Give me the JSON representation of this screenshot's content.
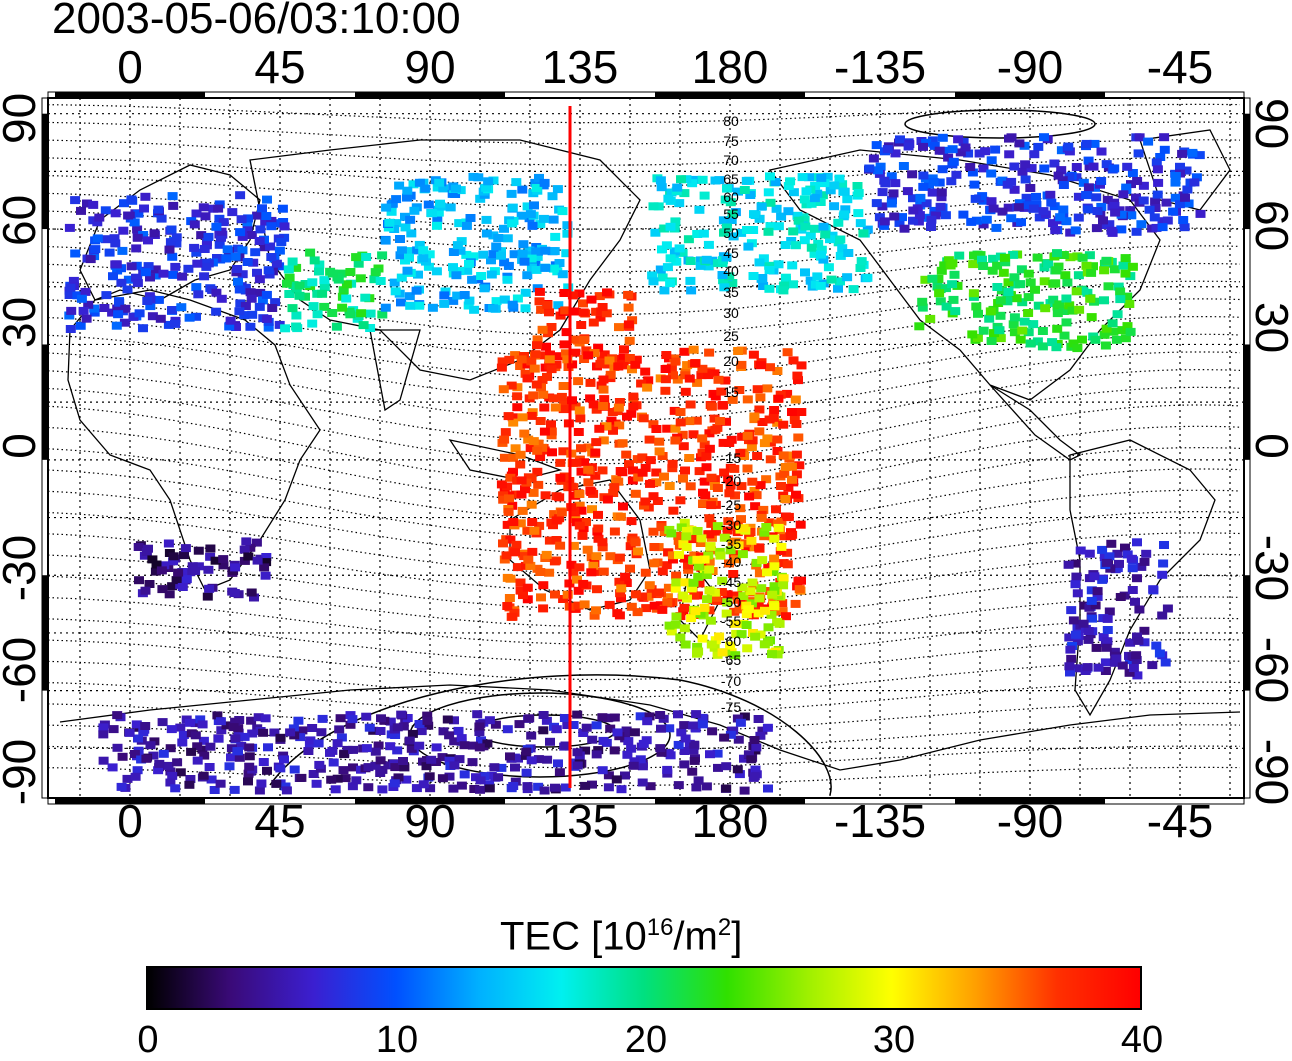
{
  "title": "2003-05-06/03:10:00",
  "x_ticks": [
    "0",
    "45",
    "90",
    "135",
    "180",
    "-135",
    "-90",
    "-45"
  ],
  "y_ticks": [
    "90",
    "60",
    "30",
    "0",
    "-30",
    "-60",
    "-90"
  ],
  "colorbar": {
    "label_prefix": "TEC  [10",
    "label_exp1": "16",
    "label_mid": "/m",
    "label_exp2": "2",
    "label_suffix": "]",
    "ticks": [
      "0",
      "10",
      "20",
      "30",
      "40"
    ],
    "colors": [
      "#000000",
      "#3a0a78",
      "#3b1fd0",
      "#0050ff",
      "#00b0ff",
      "#00f0f0",
      "#00e080",
      "#30e000",
      "#a0f000",
      "#ffff00",
      "#ffa000",
      "#ff3000",
      "#ff0000"
    ]
  },
  "contour_labels_north": [
    "80",
    "75",
    "70",
    "65",
    "60",
    "55",
    "50",
    "45",
    "40",
    "35",
    "30",
    "25",
    "20",
    "15"
  ],
  "contour_labels_south": [
    "-15",
    "-20",
    "-25",
    "-30",
    "-35",
    "-40",
    "-45",
    "-50",
    "-55",
    "-60",
    "-65",
    "-70",
    "-75"
  ],
  "chart_data": {
    "type": "heatmap",
    "title": "2003-05-06/03:10:00",
    "xlabel": "",
    "ylabel": "",
    "xlim": [
      -25,
      335
    ],
    "ylim": [
      -90,
      90
    ],
    "colorbar_label": "TEC [10^16/m^2]",
    "colorbar_range": [
      0,
      40
    ],
    "marker_longitude": 135,
    "regions": [
      {
        "lon": [
          -20,
          45
        ],
        "lat": [
          35,
          70
        ],
        "tec": 8
      },
      {
        "lon": [
          45,
          75
        ],
        "lat": [
          35,
          55
        ],
        "tec": 20
      },
      {
        "lon": [
          75,
          130
        ],
        "lat": [
          40,
          75
        ],
        "tec": 14
      },
      {
        "lon": [
          120,
          150
        ],
        "lat": [
          25,
          45
        ],
        "tec": 38
      },
      {
        "lon": [
          155,
          220
        ],
        "lat": [
          45,
          75
        ],
        "tec": 16
      },
      {
        "lon": [
          235,
          300
        ],
        "lat": [
          30,
          55
        ],
        "tec": 22
      },
      {
        "lon": [
          220,
          320
        ],
        "lat": [
          60,
          85
        ],
        "tec": 8
      },
      {
        "lon": [
          110,
          200
        ],
        "lat": [
          -40,
          30
        ],
        "tec": 37
      },
      {
        "lon": [
          160,
          195
        ],
        "lat": [
          -50,
          -15
        ],
        "tec": 28
      },
      {
        "lon": [
          0,
          40
        ],
        "lat": [
          -35,
          -20
        ],
        "tec": 4
      },
      {
        "lon": [
          280,
          310
        ],
        "lat": [
          -55,
          -20
        ],
        "tec": 6
      },
      {
        "lon": [
          -10,
          190
        ],
        "lat": [
          -85,
          -65
        ],
        "tec": 5
      }
    ]
  }
}
